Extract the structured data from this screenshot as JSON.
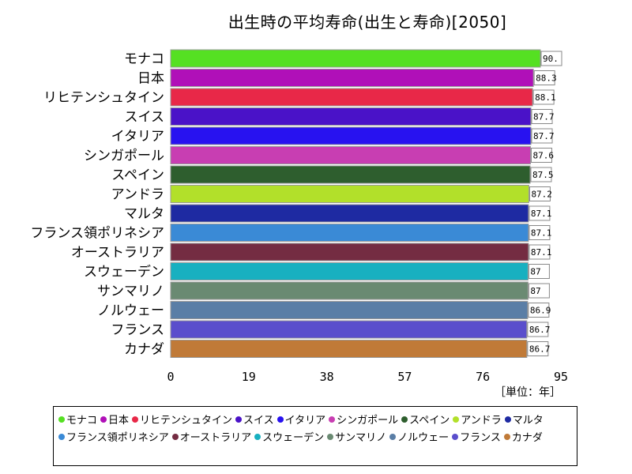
{
  "chart_data": {
    "type": "bar",
    "orientation": "horizontal",
    "title": "出生時の平均寿命(出生と寿命)[2050]",
    "unit_label": "［単位：年］",
    "xlim": [
      0,
      95
    ],
    "xticks": [
      0,
      19,
      38,
      57,
      76,
      95
    ],
    "grid": false,
    "legend_position": "bottom",
    "categories": [
      "モナコ",
      "日本",
      "リヒテンシュタイン",
      "スイス",
      "イタリア",
      "シンガポール",
      "スペイン",
      "アンドラ",
      "マルタ",
      "フランス領ポリネシア",
      "オーストラリア",
      "スウェーデン",
      "サンマリノ",
      "ノルウェー",
      "フランス",
      "カナダ"
    ],
    "values": [
      90.0,
      88.3,
      88.1,
      87.7,
      87.7,
      87.6,
      87.5,
      87.2,
      87.1,
      87.1,
      87.1,
      87,
      87,
      86.9,
      86.7,
      86.7
    ],
    "value_labels": [
      "90.",
      "88.3",
      "88.1",
      "87.7",
      "87.7",
      "87.6",
      "87.5",
      "87.2",
      "87.1",
      "87.1",
      "87.1",
      "87",
      "87",
      "86.9",
      "86.7",
      "86.7"
    ],
    "colors": [
      "#55e022",
      "#b010b8",
      "#e82848",
      "#4a12c8",
      "#2812f0",
      "#c83eb2",
      "#2e5e2e",
      "#b2e02a",
      "#1e2aa2",
      "#3a8ad6",
      "#742c42",
      "#18b0c0",
      "#6a8a72",
      "#5a7ea6",
      "#5a4ecc",
      "#c07a38"
    ]
  }
}
